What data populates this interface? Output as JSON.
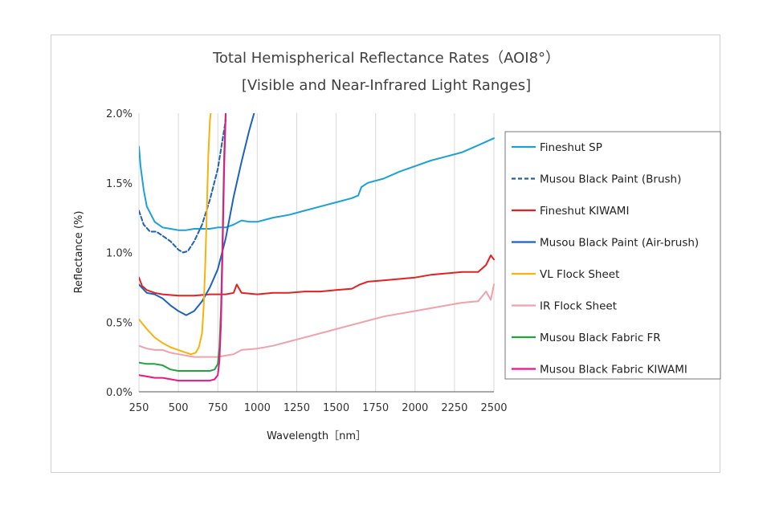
{
  "chart_data": {
    "type": "line",
    "title": "Total Hemispherical Reflectance Rates（AOI8°）",
    "subtitle": "[Visible and Near-Infrared Light Ranges]",
    "xlabel": "Wavelength［nm］",
    "ylabel": "Reflectance (%)",
    "xlim": [
      250,
      2500
    ],
    "ylim": [
      0,
      2.0
    ],
    "x_ticks": [
      "250",
      "500",
      "750",
      "1000",
      "1250",
      "1500",
      "1750",
      "2000",
      "2250",
      "2500"
    ],
    "y_ticks": [
      "0.0%",
      "0.5%",
      "1.0%",
      "1.5%",
      "2.0%"
    ],
    "grid": "vertical",
    "legend_position": "right",
    "series": [
      {
        "name": "Fineshut SP",
        "color": "#1ba1d8",
        "style": "solid",
        "x": [
          250,
          260,
          280,
          300,
          350,
          400,
          450,
          500,
          550,
          600,
          650,
          700,
          750,
          800,
          850,
          900,
          950,
          1000,
          1100,
          1200,
          1300,
          1400,
          1500,
          1600,
          1640,
          1660,
          1700,
          1800,
          1900,
          2000,
          2100,
          2200,
          2300,
          2400,
          2500
        ],
        "y": [
          1.76,
          1.62,
          1.45,
          1.33,
          1.22,
          1.18,
          1.17,
          1.16,
          1.16,
          1.17,
          1.17,
          1.17,
          1.18,
          1.18,
          1.2,
          1.23,
          1.22,
          1.22,
          1.25,
          1.27,
          1.3,
          1.33,
          1.36,
          1.39,
          1.41,
          1.47,
          1.5,
          1.53,
          1.58,
          1.62,
          1.66,
          1.69,
          1.72,
          1.77,
          1.82
        ]
      },
      {
        "name": "Musou Black Paint (Brush)",
        "color": "#1f5fb7",
        "style": "dashed",
        "x": [
          250,
          280,
          320,
          360,
          400,
          450,
          500,
          530,
          560,
          600,
          650,
          700,
          750,
          800
        ],
        "y": [
          1.3,
          1.2,
          1.15,
          1.15,
          1.12,
          1.08,
          1.02,
          1.0,
          1.01,
          1.08,
          1.2,
          1.38,
          1.6,
          1.95
        ]
      },
      {
        "name": "Fineshut KIWAMI",
        "color": "#e52020",
        "style": "solid",
        "x": [
          250,
          270,
          300,
          350,
          400,
          500,
          600,
          700,
          800,
          850,
          870,
          900,
          1000,
          1100,
          1200,
          1300,
          1400,
          1500,
          1600,
          1650,
          1700,
          1800,
          1900,
          2000,
          2100,
          2200,
          2300,
          2400,
          2450,
          2480,
          2500
        ],
        "y": [
          0.82,
          0.76,
          0.73,
          0.71,
          0.7,
          0.69,
          0.69,
          0.7,
          0.7,
          0.71,
          0.77,
          0.71,
          0.7,
          0.71,
          0.71,
          0.72,
          0.72,
          0.73,
          0.74,
          0.77,
          0.79,
          0.8,
          0.81,
          0.82,
          0.84,
          0.85,
          0.86,
          0.86,
          0.91,
          0.98,
          0.95
        ]
      },
      {
        "name": "Musou Black Paint (Air-brush)",
        "color": "#1b63c2",
        "style": "solid",
        "x": [
          250,
          300,
          350,
          400,
          450,
          500,
          550,
          600,
          650,
          700,
          750,
          800,
          850,
          900,
          950,
          980
        ],
        "y": [
          0.77,
          0.71,
          0.7,
          0.67,
          0.62,
          0.58,
          0.55,
          0.58,
          0.65,
          0.75,
          0.88,
          1.1,
          1.4,
          1.65,
          1.88,
          2.0
        ]
      },
      {
        "name": "VL Flock Sheet",
        "color": "#f7b30c",
        "style": "solid",
        "x": [
          250,
          300,
          350,
          400,
          450,
          500,
          550,
          580,
          610,
          630,
          650,
          660,
          670,
          680,
          690,
          700,
          705
        ],
        "y": [
          0.52,
          0.45,
          0.39,
          0.35,
          0.32,
          0.3,
          0.28,
          0.27,
          0.28,
          0.32,
          0.42,
          0.6,
          0.9,
          1.3,
          1.7,
          1.95,
          2.0
        ]
      },
      {
        "name": "IR Flock Sheet",
        "color": "#f0a1ab",
        "style": "solid",
        "x": [
          250,
          300,
          350,
          400,
          450,
          500,
          550,
          600,
          650,
          700,
          750,
          800,
          850,
          900,
          1000,
          1100,
          1200,
          1300,
          1400,
          1500,
          1600,
          1700,
          1800,
          1900,
          2000,
          2100,
          2200,
          2300,
          2400,
          2450,
          2480,
          2500
        ],
        "y": [
          0.33,
          0.31,
          0.3,
          0.3,
          0.28,
          0.27,
          0.26,
          0.25,
          0.25,
          0.25,
          0.25,
          0.26,
          0.27,
          0.3,
          0.31,
          0.33,
          0.36,
          0.39,
          0.42,
          0.45,
          0.48,
          0.51,
          0.54,
          0.56,
          0.58,
          0.6,
          0.62,
          0.64,
          0.65,
          0.72,
          0.66,
          0.77
        ]
      },
      {
        "name": "Musou Black Fabric FR",
        "color": "#1fa53c",
        "style": "solid",
        "x": [
          250,
          300,
          350,
          400,
          450,
          500,
          550,
          600,
          650,
          700,
          730,
          750,
          760,
          770,
          780,
          790,
          800
        ],
        "y": [
          0.21,
          0.2,
          0.2,
          0.19,
          0.16,
          0.15,
          0.15,
          0.15,
          0.15,
          0.15,
          0.16,
          0.2,
          0.32,
          0.6,
          1.1,
          1.7,
          2.0
        ]
      },
      {
        "name": "Musou Black Fabric KIWAMI",
        "color": "#e8168a",
        "style": "solid",
        "x": [
          250,
          300,
          350,
          400,
          450,
          500,
          550,
          600,
          650,
          700,
          730,
          750,
          760,
          770,
          780,
          790,
          800
        ],
        "y": [
          0.12,
          0.11,
          0.1,
          0.1,
          0.09,
          0.08,
          0.08,
          0.08,
          0.08,
          0.08,
          0.09,
          0.12,
          0.22,
          0.5,
          1.0,
          1.6,
          2.0
        ]
      }
    ]
  }
}
